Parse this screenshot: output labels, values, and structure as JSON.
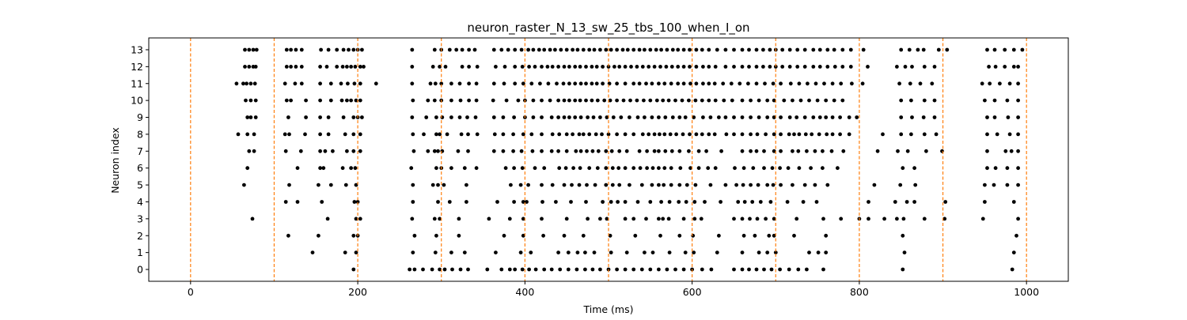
{
  "chart_data": {
    "type": "scatter",
    "title": "neuron_raster_N_13_sw_25_tbs_100_when_I_on",
    "xlabel": "Time (ms)",
    "ylabel": "Neuron index",
    "xlim": [
      -50,
      1050
    ],
    "ylim": [
      -0.7,
      13.7
    ],
    "x_ticks": [
      0,
      200,
      400,
      600,
      800,
      1000
    ],
    "y_ticks": [
      0,
      1,
      2,
      3,
      4,
      5,
      6,
      7,
      8,
      9,
      10,
      11,
      12,
      13
    ],
    "grid": false,
    "marker_color": "#000000",
    "vline_color": "#ff7f0e",
    "vlines": [
      0,
      100,
      200,
      300,
      400,
      500,
      600,
      700,
      800,
      900,
      1000
    ],
    "series": [
      {
        "neuron": 0,
        "spike_times": [
          195,
          262,
          268,
          278,
          289,
          298,
          304,
          313,
          323,
          332,
          355,
          372,
          382,
          388,
          397,
          405,
          413,
          423,
          432,
          442,
          452,
          462,
          472,
          481,
          490,
          500,
          510,
          520,
          530,
          540,
          550,
          560,
          570,
          580,
          590,
          600,
          612,
          623,
          650,
          660,
          668,
          677,
          686,
          695,
          705,
          716,
          727,
          737,
          757,
          852,
          983
        ]
      },
      {
        "neuron": 1,
        "spike_times": [
          146,
          185,
          198,
          266,
          293,
          312,
          328,
          365,
          395,
          407,
          440,
          452,
          463,
          472,
          483,
          503,
          522,
          543,
          553,
          573,
          592,
          602,
          630,
          660,
          680,
          690,
          700,
          740,
          751,
          760,
          854,
          985
        ]
      },
      {
        "neuron": 2,
        "spike_times": [
          117,
          153,
          195,
          200,
          268,
          294,
          321,
          375,
          398,
          422,
          447,
          470,
          502,
          532,
          562,
          585,
          601,
          632,
          662,
          675,
          692,
          698,
          722,
          760,
          852,
          988
        ]
      },
      {
        "neuron": 3,
        "spike_times": [
          74,
          164,
          198,
          203,
          265,
          292,
          298,
          321,
          357,
          382,
          398,
          420,
          450,
          475,
          490,
          498,
          520,
          530,
          545,
          560,
          565,
          572,
          590,
          603,
          611,
          650,
          660,
          669,
          678,
          688,
          698,
          725,
          757,
          778,
          800,
          811,
          830,
          845,
          853,
          878,
          902,
          948,
          990
        ]
      },
      {
        "neuron": 4,
        "spike_times": [
          114,
          128,
          157,
          196,
          200,
          266,
          296,
          310,
          330,
          367,
          387,
          398,
          402,
          421,
          437,
          455,
          473,
          493,
          503,
          511,
          520,
          535,
          550,
          563,
          573,
          584,
          593,
          603,
          615,
          634,
          655,
          663,
          672,
          682,
          694,
          714,
          733,
          749,
          811,
          843,
          857,
          866,
          903,
          950,
          985
        ]
      },
      {
        "neuron": 5,
        "spike_times": [
          64,
          118,
          153,
          168,
          186,
          198,
          266,
          290,
          296,
          303,
          330,
          383,
          395,
          404,
          420,
          433,
          447,
          456,
          465,
          474,
          484,
          497,
          505,
          513,
          525,
          540,
          552,
          560,
          566,
          575,
          585,
          594,
          604,
          622,
          640,
          653,
          661,
          670,
          679,
          690,
          697,
          706,
          720,
          735,
          747,
          762,
          818,
          849,
          867,
          950,
          961,
          977,
          990
        ]
      },
      {
        "neuron": 6,
        "spike_times": [
          68,
          128,
          155,
          159,
          182,
          192,
          197,
          264,
          294,
          300,
          312,
          328,
          342,
          377,
          387,
          397,
          412,
          423,
          441,
          449,
          458,
          466,
          477,
          487,
          497,
          505,
          512,
          520,
          530,
          538,
          546,
          553,
          560,
          567,
          575,
          586,
          598,
          608,
          619,
          628,
          651,
          662,
          673,
          686,
          696,
          705,
          715,
          728,
          742,
          756,
          774,
          852,
          866,
          953,
          963,
          977,
          990
        ]
      },
      {
        "neuron": 7,
        "spike_times": [
          70,
          76,
          114,
          132,
          155,
          161,
          170,
          187,
          195,
          203,
          267,
          284,
          292,
          296,
          301,
          320,
          332,
          363,
          374,
          386,
          396,
          409,
          420,
          432,
          440,
          450,
          461,
          467,
          474,
          481,
          488,
          497,
          504,
          513,
          522,
          537,
          546,
          555,
          560,
          568,
          576,
          585,
          596,
          608,
          617,
          635,
          660,
          670,
          677,
          686,
          698,
          706,
          720,
          727,
          737,
          747,
          756,
          767,
          781,
          822,
          846,
          858,
          880,
          899,
          953,
          975,
          982,
          990
        ]
      },
      {
        "neuron": 8,
        "spike_times": [
          57,
          68,
          76,
          113,
          118,
          137,
          155,
          165,
          185,
          195,
          203,
          266,
          279,
          294,
          298,
          307,
          324,
          332,
          343,
          364,
          374,
          386,
          398,
          408,
          420,
          433,
          441,
          450,
          457,
          465,
          470,
          477,
          485,
          492,
          500,
          510,
          520,
          530,
          541,
          548,
          555,
          561,
          567,
          574,
          581,
          589,
          597,
          605,
          612,
          620,
          627,
          641,
          650,
          660,
          670,
          678,
          688,
          698,
          706,
          716,
          722,
          728,
          736,
          743,
          752,
          761,
          768,
          777,
          788,
          828,
          850,
          862,
          878,
          892,
          953,
          965,
          980,
          990
        ]
      },
      {
        "neuron": 9,
        "spike_times": [
          68,
          72,
          78,
          117,
          138,
          155,
          165,
          183,
          195,
          200,
          205,
          265,
          282,
          294,
          301,
          312,
          322,
          331,
          341,
          363,
          374,
          387,
          400,
          410,
          420,
          432,
          440,
          447,
          453,
          460,
          467,
          475,
          482,
          490,
          498,
          506,
          515,
          525,
          535,
          543,
          552,
          560,
          568,
          577,
          585,
          592,
          602,
          613,
          622,
          632,
          640,
          650,
          660,
          670,
          680,
          690,
          698,
          706,
          717,
          725,
          735,
          745,
          753,
          760,
          768,
          777,
          788,
          797,
          850,
          863,
          877,
          890,
          953,
          962,
          978,
          990
        ]
      },
      {
        "neuron": 10,
        "spike_times": [
          66,
          72,
          78,
          115,
          120,
          138,
          155,
          168,
          181,
          187,
          192,
          198,
          203,
          266,
          284,
          292,
          300,
          312,
          323,
          333,
          342,
          362,
          378,
          392,
          400,
          410,
          420,
          430,
          440,
          447,
          453,
          460,
          466,
          473,
          480,
          487,
          495,
          502,
          510,
          518,
          526,
          534,
          542,
          550,
          558,
          565,
          572,
          580,
          588,
          596,
          604,
          612,
          620,
          628,
          638,
          648,
          660,
          670,
          680,
          690,
          698,
          710,
          720,
          730,
          740,
          750,
          760,
          770,
          780,
          850,
          862,
          878,
          890,
          950,
          962,
          977,
          990
        ]
      },
      {
        "neuron": 11,
        "spike_times": [
          55,
          63,
          67,
          72,
          77,
          113,
          125,
          133,
          155,
          168,
          180,
          188,
          196,
          203,
          222,
          265,
          287,
          293,
          300,
          312,
          322,
          333,
          342,
          363,
          375,
          388,
          398,
          408,
          418,
          428,
          438,
          446,
          453,
          460,
          467,
          473,
          480,
          486,
          493,
          501,
          510,
          520,
          530,
          537,
          545,
          552,
          560,
          567,
          575,
          583,
          590,
          598,
          605,
          613,
          620,
          627,
          637,
          647,
          657,
          667,
          677,
          687,
          697,
          706,
          718,
          728,
          738,
          748,
          758,
          768,
          778,
          791,
          804,
          848,
          861,
          873,
          887,
          947,
          956,
          968,
          980,
          990
        ]
      },
      {
        "neuron": 12,
        "spike_times": [
          65,
          70,
          75,
          78,
          115,
          120,
          126,
          133,
          155,
          163,
          175,
          182,
          187,
          192,
          197,
          203,
          207,
          265,
          290,
          298,
          305,
          325,
          333,
          343,
          365,
          376,
          388,
          397,
          405,
          412,
          420,
          427,
          433,
          440,
          447,
          453,
          460,
          466,
          473,
          480,
          486,
          493,
          500,
          507,
          513,
          520,
          527,
          534,
          541,
          548,
          555,
          562,
          569,
          576,
          583,
          590,
          597,
          605,
          613,
          620,
          628,
          640,
          650,
          660,
          668,
          677,
          685,
          693,
          700,
          708,
          717,
          726,
          735,
          745,
          753,
          762,
          771,
          780,
          790,
          810,
          845,
          855,
          863,
          878,
          890,
          955,
          963,
          974,
          985,
          990
        ]
      },
      {
        "neuron": 13,
        "spike_times": [
          65,
          70,
          75,
          79,
          115,
          120,
          126,
          133,
          156,
          165,
          175,
          183,
          189,
          195,
          200,
          205,
          265,
          292,
          300,
          310,
          318,
          325,
          333,
          340,
          363,
          372,
          380,
          388,
          396,
          404,
          410,
          417,
          423,
          430,
          436,
          443,
          450,
          457,
          463,
          470,
          477,
          483,
          490,
          497,
          503,
          510,
          517,
          523,
          530,
          537,
          543,
          550,
          557,
          563,
          570,
          577,
          583,
          590,
          597,
          605,
          612,
          620,
          630,
          640,
          650,
          660,
          668,
          677,
          685,
          693,
          700,
          708,
          717,
          726,
          735,
          745,
          753,
          762,
          770,
          780,
          790,
          805,
          850,
          860,
          870,
          877,
          895,
          905,
          953,
          962,
          974,
          985,
          995
        ]
      }
    ]
  }
}
